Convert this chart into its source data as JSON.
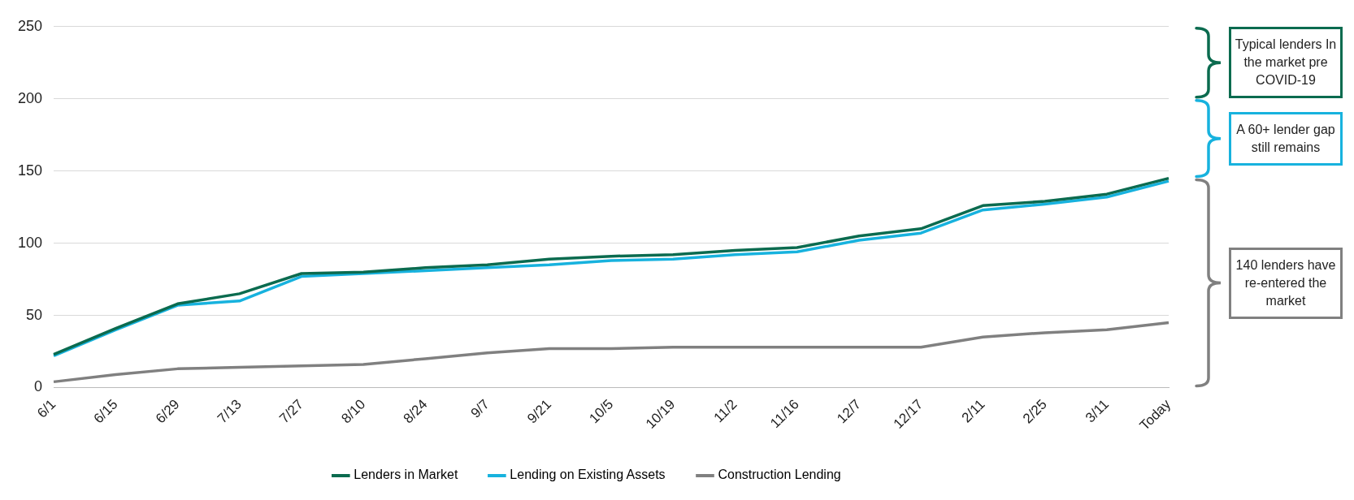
{
  "chart_data": {
    "type": "line",
    "categories": [
      "6/1",
      "6/15",
      "6/29",
      "7/13",
      "7/27",
      "8/10",
      "8/24",
      "9/7",
      "9/21",
      "10/5",
      "10/19",
      "11/2",
      "11/16",
      "12/7",
      "12/17",
      "2/11",
      "2/25",
      "3/11",
      "Today"
    ],
    "series": [
      {
        "name": "Lenders in Market",
        "color": "#0b6b4f",
        "values": [
          23,
          41,
          58,
          65,
          79,
          80,
          83,
          85,
          89,
          91,
          92,
          95,
          97,
          105,
          110,
          126,
          129,
          134,
          145
        ]
      },
      {
        "name": "Lending on Existing Assets",
        "color": "#17b2de",
        "values": [
          22,
          40,
          57,
          60,
          77,
          79,
          81,
          83,
          85,
          88,
          89,
          92,
          94,
          102,
          107,
          123,
          127,
          132,
          143
        ]
      },
      {
        "name": "Construction Lending",
        "color": "#808080",
        "values": [
          4,
          9,
          13,
          14,
          15,
          16,
          20,
          24,
          27,
          27,
          28,
          28,
          28,
          28,
          28,
          35,
          38,
          40,
          45
        ]
      }
    ],
    "ylim": [
      0,
      250
    ],
    "yticks": [
      0,
      50,
      100,
      150,
      200,
      250
    ],
    "grid": "y",
    "legend": "bottom",
    "marker": "none",
    "line_style": "solid",
    "annotations": [
      "Typical lenders In the market pre COVID-19",
      "A 60+ lender gap still remains",
      "140 lenders have re-entered the market"
    ]
  }
}
